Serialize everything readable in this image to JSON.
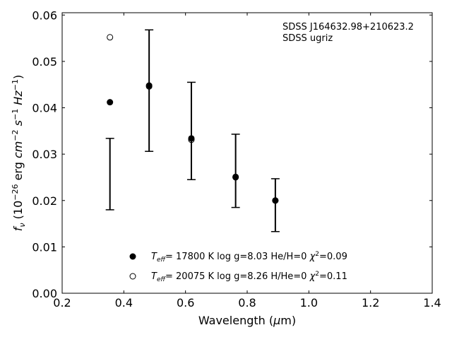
{
  "chart_data": {
    "type": "scatter",
    "title": "",
    "xlabel": "Wavelength (μm)",
    "ylabel": "f_ν (10^-26 erg cm^-2 s^-1 Hz^-1)",
    "xlim": [
      0.2,
      1.4
    ],
    "ylim": [
      0.0,
      0.0605
    ],
    "x_ticks": [
      "0.2",
      "0.4",
      "0.6",
      "0.8",
      "1.0",
      "1.2",
      "1.4"
    ],
    "y_ticks": [
      "0.00",
      "0.01",
      "0.02",
      "0.03",
      "0.04",
      "0.05",
      "0.06"
    ],
    "grid": false,
    "legend_position": "lower-center",
    "annotation": {
      "line1": "SDSS J164632.98+210623.2",
      "line2": "SDSS ugriz"
    },
    "observed": {
      "x": [
        0.355,
        0.482,
        0.619,
        0.7625,
        0.8913
      ],
      "y": [
        0.0257,
        0.0437,
        0.035,
        0.0264,
        0.019
      ],
      "yerr": [
        0.0077,
        0.0131,
        0.0105,
        0.0079,
        0.0057
      ]
    },
    "series": [
      {
        "name": "T_eff= 17800 K  log g=8.03  He/H=0  χ²=0.09",
        "label": {
          "prefix": "T",
          "sub": "eff",
          "rest": "= 17800 K  log g=8.03  He/H=0  ",
          "chi": "χ",
          "chi_sup": "2",
          "chi_val": "=0.09"
        },
        "marker": "filled",
        "color": "#000000",
        "x": [
          0.355,
          0.482,
          0.619,
          0.7625,
          0.8913
        ],
        "y": [
          0.0412,
          0.0448,
          0.0334,
          0.0251,
          0.02
        ]
      },
      {
        "name": "T_eff= 20075 K  log g=8.26  H/He=0  χ²=0.11",
        "label": {
          "prefix": "T",
          "sub": "eff",
          "rest": "= 20075 K  log g=8.26  H/He=0  ",
          "chi": "χ",
          "chi_sup": "2",
          "chi_val": "=0.11"
        },
        "marker": "open",
        "color": "#000000",
        "x": [
          0.355,
          0.482,
          0.619,
          0.7625,
          0.8913
        ],
        "y": [
          0.0552,
          0.0446,
          0.0331,
          0.025,
          0.02
        ]
      }
    ]
  }
}
